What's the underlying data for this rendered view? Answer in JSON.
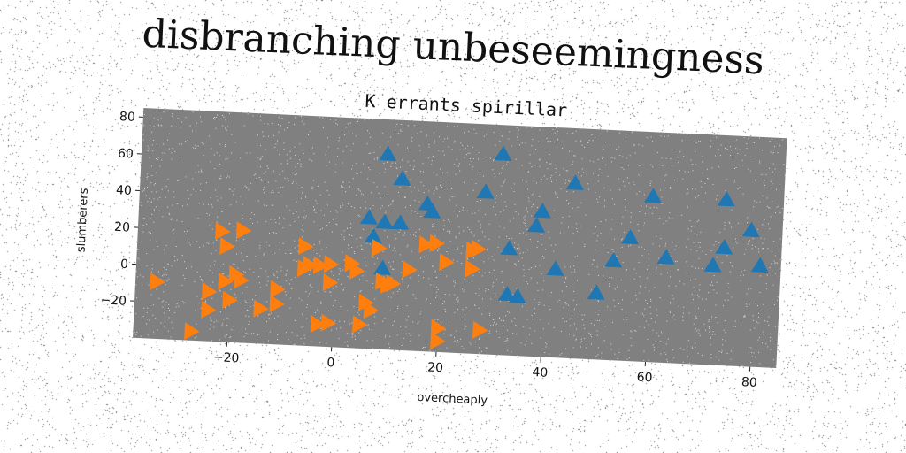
{
  "suptitle": "disbranching unbeseemingness",
  "chart_data": {
    "type": "scatter",
    "title": "K errants spirillar",
    "xlabel": "overcheaply",
    "ylabel": "slumberers",
    "xlim": [
      -38,
      85
    ],
    "ylim": [
      -40,
      85
    ],
    "xticks": [
      -20,
      0,
      20,
      40,
      60,
      80
    ],
    "yticks": [
      -20,
      0,
      20,
      40,
      60,
      80
    ],
    "grid": false,
    "series": [
      {
        "marker": "triangle-up",
        "color": "#1f77b4",
        "points": [
          [
            9,
            66
          ],
          [
            12,
            53
          ],
          [
            31,
            69
          ],
          [
            45,
            55
          ],
          [
            28,
            48
          ],
          [
            60,
            50
          ],
          [
            74,
            50
          ],
          [
            17,
            40
          ],
          [
            18,
            36
          ],
          [
            39,
            39
          ],
          [
            38,
            31
          ],
          [
            79,
            34
          ],
          [
            6,
            31
          ],
          [
            9,
            29
          ],
          [
            12,
            29
          ],
          [
            56,
            27
          ],
          [
            7,
            21
          ],
          [
            74,
            24
          ],
          [
            33,
            18
          ],
          [
            63,
            17
          ],
          [
            53,
            14
          ],
          [
            72,
            14
          ],
          [
            81,
            15
          ],
          [
            42,
            8
          ],
          [
            9,
            4
          ],
          [
            50,
            -4
          ],
          [
            33,
            -7
          ],
          [
            35,
            -8
          ]
        ]
      },
      {
        "marker": "triangle-right",
        "color": "#ff7f0e",
        "points": [
          [
            -22,
            20
          ],
          [
            -18,
            21
          ],
          [
            -21,
            12
          ],
          [
            -6,
            14
          ],
          [
            8,
            15
          ],
          [
            17,
            18
          ],
          [
            19,
            19
          ],
          [
            26,
            16
          ],
          [
            27,
            17
          ],
          [
            21,
            9
          ],
          [
            26,
            6
          ],
          [
            3,
            6
          ],
          [
            -1,
            5
          ],
          [
            -3,
            4
          ],
          [
            -5,
            4
          ],
          [
            -6,
            2
          ],
          [
            4,
            2
          ],
          [
            14,
            4
          ],
          [
            9,
            -3
          ],
          [
            10,
            -5
          ],
          [
            11,
            -4
          ],
          [
            -1,
            -5
          ],
          [
            -34,
            -9
          ],
          [
            -21,
            -7
          ],
          [
            -19,
            -3
          ],
          [
            -18,
            -6
          ],
          [
            -11,
            -10
          ],
          [
            -24,
            -13
          ],
          [
            -20,
            -17
          ],
          [
            6,
            -15
          ],
          [
            7,
            -19
          ],
          [
            -11,
            -18
          ],
          [
            -14,
            -21
          ],
          [
            -24,
            -23
          ],
          [
            -3,
            -28
          ],
          [
            -1,
            -27
          ],
          [
            5,
            -27
          ],
          [
            20,
            -27
          ],
          [
            28,
            -27
          ],
          [
            20,
            -34
          ],
          [
            -27,
            -35
          ]
        ]
      }
    ]
  }
}
